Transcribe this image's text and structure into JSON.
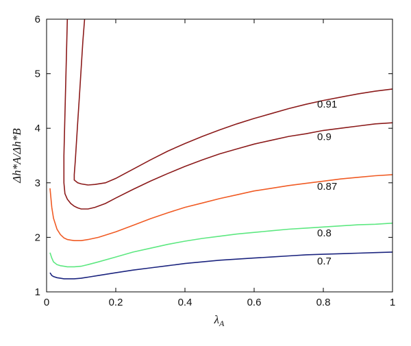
{
  "chart_data": {
    "type": "line",
    "xlabel": "λ",
    "xlabel_sub": "A",
    "ylabel": "Δh*A/Δh*B",
    "xlim": [
      0,
      1
    ],
    "ylim": [
      1,
      6
    ],
    "xticks": [
      0,
      0.2,
      0.4,
      0.6,
      0.8,
      1
    ],
    "xtick_labels": [
      "0",
      "0.2",
      "0.4",
      "0.6",
      "0.8",
      "1"
    ],
    "yticks": [
      1,
      2,
      3,
      4,
      5,
      6
    ],
    "ytick_labels": [
      "1",
      "2",
      "3",
      "4",
      "5",
      "6"
    ],
    "grid": false,
    "legend": "none",
    "series": [
      {
        "name": "0.91",
        "color": "#8b1a1a",
        "label_at": [
          0.8,
          4.38
        ],
        "upper_branch": {
          "x": [
            0.11,
            0.105,
            0.1,
            0.095,
            0.09,
            0.086,
            0.083,
            0.08,
            0.08
          ],
          "y": [
            6.0,
            5.6,
            5.1,
            4.6,
            4.1,
            3.7,
            3.4,
            3.15,
            3.05
          ]
        },
        "x": [
          0.08,
          0.09,
          0.1,
          0.12,
          0.14,
          0.17,
          0.2,
          0.25,
          0.3,
          0.35,
          0.4,
          0.45,
          0.5,
          0.55,
          0.6,
          0.65,
          0.7,
          0.75,
          0.8,
          0.85,
          0.9,
          0.95,
          1.0
        ],
        "y": [
          3.05,
          3.0,
          2.98,
          2.96,
          2.97,
          3.0,
          3.08,
          3.25,
          3.42,
          3.58,
          3.72,
          3.85,
          3.97,
          4.08,
          4.18,
          4.27,
          4.36,
          4.44,
          4.51,
          4.57,
          4.63,
          4.68,
          4.72
        ]
      },
      {
        "name": "0.9",
        "color": "#8b1a1a",
        "label_at": [
          0.8,
          3.78
        ],
        "upper_branch": {
          "x": [
            0.06,
            0.058,
            0.056,
            0.054,
            0.052,
            0.05,
            0.05,
            0.053
          ],
          "y": [
            6.0,
            5.5,
            5.0,
            4.5,
            4.0,
            3.5,
            3.0,
            2.8
          ]
        },
        "x": [
          0.053,
          0.06,
          0.07,
          0.08,
          0.09,
          0.1,
          0.12,
          0.14,
          0.17,
          0.2,
          0.25,
          0.3,
          0.35,
          0.4,
          0.45,
          0.5,
          0.55,
          0.6,
          0.65,
          0.7,
          0.75,
          0.8,
          0.85,
          0.9,
          0.95,
          1.0
        ],
        "y": [
          2.8,
          2.7,
          2.62,
          2.57,
          2.54,
          2.52,
          2.52,
          2.55,
          2.62,
          2.72,
          2.88,
          3.03,
          3.17,
          3.3,
          3.42,
          3.53,
          3.62,
          3.71,
          3.78,
          3.85,
          3.9,
          3.96,
          4.0,
          4.04,
          4.08,
          4.1
        ]
      },
      {
        "name": "0.87",
        "color": "#f05a23",
        "label_at": [
          0.8,
          2.87
        ],
        "x": [
          0.01,
          0.015,
          0.02,
          0.03,
          0.04,
          0.05,
          0.06,
          0.07,
          0.08,
          0.1,
          0.12,
          0.15,
          0.2,
          0.25,
          0.3,
          0.35,
          0.4,
          0.45,
          0.5,
          0.55,
          0.6,
          0.65,
          0.7,
          0.75,
          0.8,
          0.85,
          0.9,
          0.95,
          1.0
        ],
        "y": [
          2.9,
          2.55,
          2.35,
          2.15,
          2.05,
          1.99,
          1.96,
          1.95,
          1.94,
          1.94,
          1.96,
          2.0,
          2.1,
          2.22,
          2.34,
          2.45,
          2.55,
          2.63,
          2.71,
          2.78,
          2.85,
          2.9,
          2.95,
          2.99,
          3.03,
          3.07,
          3.1,
          3.13,
          3.15
        ]
      },
      {
        "name": "0.8",
        "color": "#5ce880",
        "label_at": [
          0.8,
          2.02
        ],
        "x": [
          0.01,
          0.015,
          0.02,
          0.03,
          0.04,
          0.05,
          0.06,
          0.08,
          0.1,
          0.12,
          0.15,
          0.2,
          0.25,
          0.3,
          0.35,
          0.4,
          0.45,
          0.5,
          0.55,
          0.6,
          0.65,
          0.7,
          0.75,
          0.8,
          0.85,
          0.9,
          0.95,
          1.0
        ],
        "y": [
          1.72,
          1.62,
          1.55,
          1.5,
          1.48,
          1.47,
          1.46,
          1.46,
          1.47,
          1.5,
          1.55,
          1.64,
          1.73,
          1.8,
          1.87,
          1.93,
          1.98,
          2.02,
          2.06,
          2.09,
          2.12,
          2.15,
          2.17,
          2.19,
          2.21,
          2.23,
          2.24,
          2.26
        ]
      },
      {
        "name": "0.7",
        "color": "#1a237e",
        "label_at": [
          0.8,
          1.5
        ],
        "x": [
          0.01,
          0.015,
          0.02,
          0.03,
          0.04,
          0.05,
          0.06,
          0.08,
          0.1,
          0.12,
          0.15,
          0.2,
          0.25,
          0.3,
          0.35,
          0.4,
          0.45,
          0.5,
          0.55,
          0.6,
          0.65,
          0.7,
          0.75,
          0.8,
          0.85,
          0.9,
          0.95,
          1.0
        ],
        "y": [
          1.35,
          1.3,
          1.28,
          1.26,
          1.25,
          1.24,
          1.24,
          1.24,
          1.25,
          1.27,
          1.3,
          1.35,
          1.4,
          1.44,
          1.48,
          1.52,
          1.55,
          1.58,
          1.6,
          1.62,
          1.64,
          1.66,
          1.68,
          1.69,
          1.7,
          1.71,
          1.72,
          1.73
        ]
      }
    ]
  }
}
